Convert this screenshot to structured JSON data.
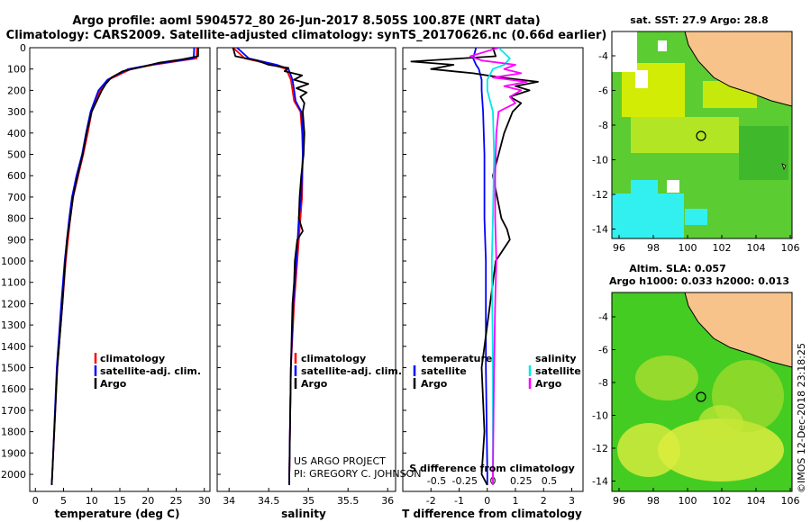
{
  "header": {
    "title_line1": "Argo profile: aoml 5904572_80 26-Jun-2017 8.505S 100.87E (NRT data)",
    "title_line2": "Climatology: CARS2009. Satellite-adjusted climatology: synTS_20170626.nc (0.66d earlier)"
  },
  "credits": {
    "project": "US ARGO PROJECT",
    "pi": "PI: GREGORY C. JOHNSON",
    "imos": "©IMOS 12-Dec-2018 23:18:25"
  },
  "maps": {
    "sst_title": "sat. SST: 27.9 Argo: 28.8",
    "sla_title1": "Altim. SLA: 0.057",
    "sla_title2": "Argo h1000: 0.033 h2000: 0.013",
    "lon_ticks": [
      "96",
      "98",
      "100",
      "102",
      "104",
      "106"
    ],
    "lat_ticks": [
      "-4",
      "-6",
      "-8",
      "-10",
      "-12",
      "-14"
    ],
    "colors": {
      "land": "#f7c38a",
      "sst_green": "#5ccc33",
      "sst_yellow": "#e0f000",
      "sst_cyan": "#33f0f0",
      "sla_green": "#44cc22",
      "sla_yellow": "#dcec40"
    }
  },
  "chart_data": [
    {
      "type": "line",
      "title": "",
      "xlabel": "temperature (deg C)",
      "ylabel": "",
      "xlim": [
        -1,
        31
      ],
      "ylim": [
        2080,
        0
      ],
      "xticks": [
        0,
        5,
        10,
        15,
        20,
        25,
        30
      ],
      "xticklabels": [
        "0",
        "5",
        "10",
        "15",
        "20",
        "25",
        "30"
      ],
      "yticks": [
        0,
        100,
        200,
        300,
        400,
        500,
        600,
        700,
        800,
        900,
        1000,
        1100,
        1200,
        1300,
        1400,
        1500,
        1600,
        1700,
        1800,
        1900,
        2000
      ],
      "yticklabels": [
        "0",
        "100",
        "200",
        "300",
        "400",
        "500",
        "600",
        "700",
        "800",
        "900",
        "1000",
        "1100",
        "1200",
        "1300",
        "1400",
        "1500",
        "1600",
        "1700",
        "1800",
        "1900",
        "2000"
      ],
      "legend": [
        "climatology",
        "satellite-adj. clim.",
        "Argo"
      ],
      "series": [
        {
          "name": "climatology",
          "color": "#ff0000",
          "depth": [
            0,
            50,
            60,
            80,
            100,
            150,
            200,
            300,
            400,
            500,
            600,
            700,
            800,
            900,
            1000,
            1200,
            1500,
            2000,
            2050
          ],
          "values": [
            28.7,
            28.6,
            26,
            21,
            17,
            13,
            11.5,
            10,
            9.3,
            8.5,
            7.6,
            6.7,
            6.2,
            5.8,
            5.4,
            4.8,
            3.9,
            3.0,
            2.9
          ]
        },
        {
          "name": "satellite-adj. clim.",
          "color": "#0000ff",
          "depth": [
            0,
            50,
            60,
            80,
            100,
            150,
            200,
            300,
            400,
            500,
            600,
            700,
            800,
            900,
            1000,
            1200,
            1500,
            2000,
            2050
          ],
          "values": [
            28.2,
            28.1,
            25.5,
            20.5,
            16.5,
            12.8,
            11.2,
            9.8,
            9.0,
            8.3,
            7.3,
            6.5,
            6.0,
            5.6,
            5.2,
            4.6,
            3.8,
            3.0,
            2.9
          ]
        },
        {
          "name": "Argo",
          "color": "#000000",
          "depth": [
            0,
            40,
            55,
            70,
            90,
            110,
            140,
            170,
            200,
            300,
            400,
            500,
            600,
            700,
            800,
            900,
            1000,
            1200,
            1500,
            2000,
            2050
          ],
          "values": [
            28.9,
            28.9,
            26,
            22,
            19,
            15.5,
            13.5,
            12.5,
            11.8,
            10,
            9.1,
            8.4,
            7.5,
            6.7,
            6.2,
            5.6,
            5.3,
            4.8,
            3.9,
            3.0,
            2.9
          ]
        }
      ]
    },
    {
      "type": "line",
      "title": "",
      "xlabel": "salinity",
      "ylabel": "",
      "xlim": [
        33.85,
        36.1
      ],
      "ylim": [
        2080,
        0
      ],
      "xticks": [
        34,
        34.5,
        35,
        35.5,
        36
      ],
      "xticklabels": [
        "34",
        "34.5",
        "35",
        "35.5",
        "36"
      ],
      "legend": [
        "climatology",
        "satellite-adj. clim.",
        "Argo"
      ],
      "series": [
        {
          "name": "climatology",
          "color": "#ff0000",
          "depth": [
            0,
            50,
            80,
            100,
            150,
            200,
            250,
            300,
            400,
            500,
            700,
            800,
            1000,
            1200,
            1500,
            2000,
            2050
          ],
          "values": [
            34.05,
            34.2,
            34.55,
            34.72,
            34.78,
            34.8,
            34.82,
            34.9,
            34.92,
            34.93,
            34.92,
            34.9,
            34.86,
            34.82,
            34.78,
            34.76,
            34.76
          ]
        },
        {
          "name": "satellite-adj. clim.",
          "color": "#0000ff",
          "depth": [
            0,
            50,
            80,
            100,
            150,
            200,
            250,
            300,
            400,
            500,
            700,
            800,
            1000,
            1200,
            1500,
            2000,
            2050
          ],
          "values": [
            34.1,
            34.25,
            34.6,
            34.75,
            34.8,
            34.82,
            34.84,
            34.91,
            34.93,
            34.93,
            34.91,
            34.88,
            34.85,
            34.81,
            34.78,
            34.76,
            34.76
          ]
        },
        {
          "name": "Argo",
          "color": "#000000",
          "depth": [
            0,
            40,
            60,
            80,
            95,
            110,
            130,
            150,
            170,
            190,
            210,
            230,
            260,
            300,
            400,
            500,
            600,
            700,
            800,
            860,
            900,
            1000,
            1100,
            1200,
            1500,
            2000,
            2050
          ],
          "values": [
            34.05,
            34.08,
            34.35,
            34.5,
            34.75,
            34.7,
            34.92,
            34.82,
            35.0,
            34.85,
            34.98,
            34.9,
            34.95,
            34.93,
            34.95,
            34.94,
            34.91,
            34.89,
            34.88,
            34.93,
            34.86,
            34.83,
            34.82,
            34.8,
            34.78,
            34.76,
            34.76
          ]
        }
      ]
    },
    {
      "type": "line",
      "title": "",
      "xlabel": "T difference from climatology",
      "xlabel2": "S difference from climatology",
      "ylabel": "",
      "xlim": [
        -3,
        3.4
      ],
      "ylim": [
        2080,
        0
      ],
      "xticks": [
        -2,
        -1,
        0,
        1,
        2,
        3
      ],
      "xticklabels": [
        "-2",
        "-1",
        "0",
        "1",
        "2",
        "3"
      ],
      "xticks_salinity": [
        -0.5,
        -0.25,
        0,
        0.25,
        0.5
      ],
      "xticklabels_salinity": [
        "-0.5",
        "-0.25",
        "0",
        "0.25",
        "0.5"
      ],
      "legend_temperature_title": "temperature",
      "legend_salinity_title": "salinity",
      "legend": [
        "satellite",
        "Argo",
        "satellite",
        "Argo"
      ],
      "series": [
        {
          "name": "T satellite",
          "color": "#0000ff",
          "depth": [
            0,
            50,
            80,
            100,
            150,
            200,
            300,
            500,
            800,
            1000,
            1500,
            2000,
            2050
          ],
          "values": [
            -0.4,
            -0.5,
            -0.4,
            -0.3,
            -0.2,
            -0.2,
            -0.15,
            -0.1,
            -0.1,
            -0.05,
            -0.05,
            0,
            0
          ]
        },
        {
          "name": "T Argo",
          "color": "#000000",
          "depth": [
            0,
            40,
            55,
            65,
            80,
            100,
            120,
            140,
            160,
            180,
            200,
            230,
            260,
            300,
            400,
            500,
            600,
            800,
            850,
            900,
            1000,
            1200,
            1500,
            1800,
            2000,
            2050
          ],
          "values": [
            0.2,
            0.3,
            -1.5,
            -2.7,
            -1.2,
            -2.0,
            -0.5,
            0.5,
            1.8,
            1.0,
            1.5,
            0.8,
            1.2,
            0.9,
            0.6,
            0.4,
            0.2,
            0.5,
            0.7,
            0.8,
            0.3,
            0.1,
            -0.2,
            -0.1,
            -0.2,
            0
          ]
        },
        {
          "name": "S satellite",
          "color": "#00e8e8",
          "depth": [
            0,
            50,
            80,
            100,
            150,
            200,
            300,
            500,
            800,
            1000,
            1500,
            2000,
            2050
          ],
          "values": [
            0.05,
            0.15,
            0.1,
            0.0,
            -0.05,
            -0.05,
            0,
            0.01,
            0.0,
            -0.01,
            0.0,
            0.0,
            0.0
          ]
        },
        {
          "name": "S Argo",
          "color": "#ff00ff",
          "depth": [
            0,
            40,
            60,
            80,
            100,
            120,
            140,
            160,
            180,
            200,
            230,
            260,
            300,
            400,
            600,
            800,
            1000,
            1200,
            1500,
            2000,
            2050
          ],
          "values": [
            0.05,
            -0.2,
            -0.1,
            0.2,
            0.1,
            0.25,
            0.0,
            0.3,
            0.1,
            0.25,
            0.15,
            0.2,
            0.05,
            0.03,
            0.02,
            0.02,
            0.03,
            0.02,
            0.01,
            0.0,
            0.0
          ]
        }
      ]
    }
  ]
}
